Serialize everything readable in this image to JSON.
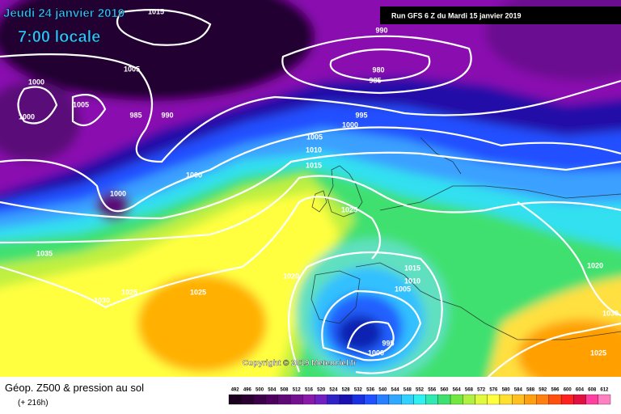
{
  "header": {
    "date": "Jeudi 24 janvier 2019",
    "time": "7:00 locale"
  },
  "run_info": "Run GFS 6 Z du Mardi 15 janvier 2019",
  "copyright": "Copyright © 2019 Meteociel.fr",
  "legend": {
    "title": "Géop. Z500 & pression au sol",
    "subtitle": "(+ 216h)",
    "scale": [
      492,
      496,
      500,
      504,
      508,
      512,
      516,
      520,
      524,
      528,
      532,
      536,
      540,
      544,
      548,
      552,
      556,
      560,
      564,
      568,
      572,
      576,
      580,
      584,
      588,
      592,
      596,
      600,
      604,
      608,
      612
    ]
  },
  "isobar_labels": [
    "1015",
    "990",
    "1005",
    "980",
    "985",
    "1000",
    "1005",
    "1000",
    "985",
    "990",
    "995",
    "1000",
    "1005",
    "1010",
    "1015",
    "1000",
    "1000",
    "1025",
    "1035",
    "1020",
    "1015",
    "1010",
    "1005",
    "1025",
    "1025",
    "1030",
    "1020",
    "1030",
    "995",
    "1000",
    "1025"
  ]
}
